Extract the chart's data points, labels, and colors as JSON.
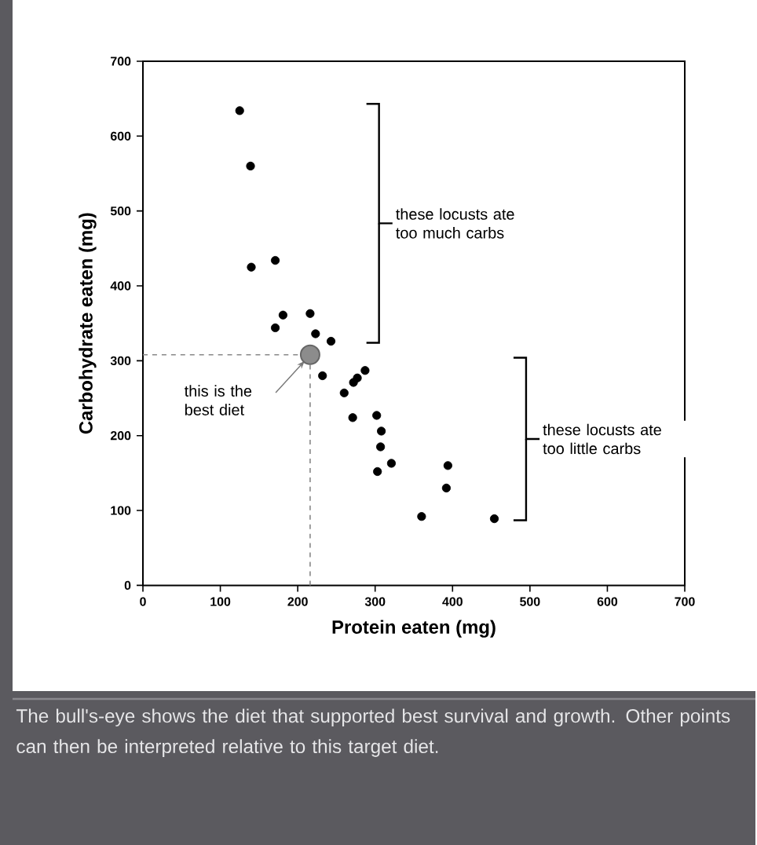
{
  "chart_data": {
    "type": "scatter",
    "xlabel": "Protein eaten (mg)",
    "ylabel": "Carbohydrate eaten (mg)",
    "xlim": [
      0,
      700
    ],
    "ylim": [
      0,
      700
    ],
    "xticks": [
      0,
      100,
      200,
      300,
      400,
      500,
      600,
      700
    ],
    "yticks": [
      0,
      100,
      200,
      300,
      400,
      500,
      600,
      700
    ],
    "marker": "circle",
    "series": [
      {
        "color": "#000000",
        "x": [
          125,
          139,
          140,
          171,
          181,
          171,
          216,
          223,
          243,
          232,
          260,
          272,
          277,
          287,
          271,
          302,
          308,
          307,
          321,
          303,
          394,
          392,
          360,
          454
        ],
        "values": [
          634,
          560,
          425,
          434,
          361,
          344,
          363,
          336,
          326,
          280,
          257,
          271,
          277,
          287,
          224,
          227,
          206,
          185,
          163,
          152,
          160,
          130,
          92,
          89
        ]
      },
      {
        "color": "#8c8c8c",
        "x": [
          216
        ],
        "values": [
          308
        ]
      }
    ],
    "ref_lines": [
      {
        "axis": "x",
        "value": 216,
        "color": "#888888",
        "line_style": "dashed"
      },
      {
        "axis": "y",
        "value": 308,
        "color": "#888888",
        "line_style": "dashed"
      }
    ],
    "annotations": [
      "this is the best diet",
      "these locusts ate too much carbs",
      "these locusts ate too little carbs",
      "The bull's-eye shows the diet that supported best survival and growth. Other points can then be interpreted relative to this target diet."
    ]
  }
}
